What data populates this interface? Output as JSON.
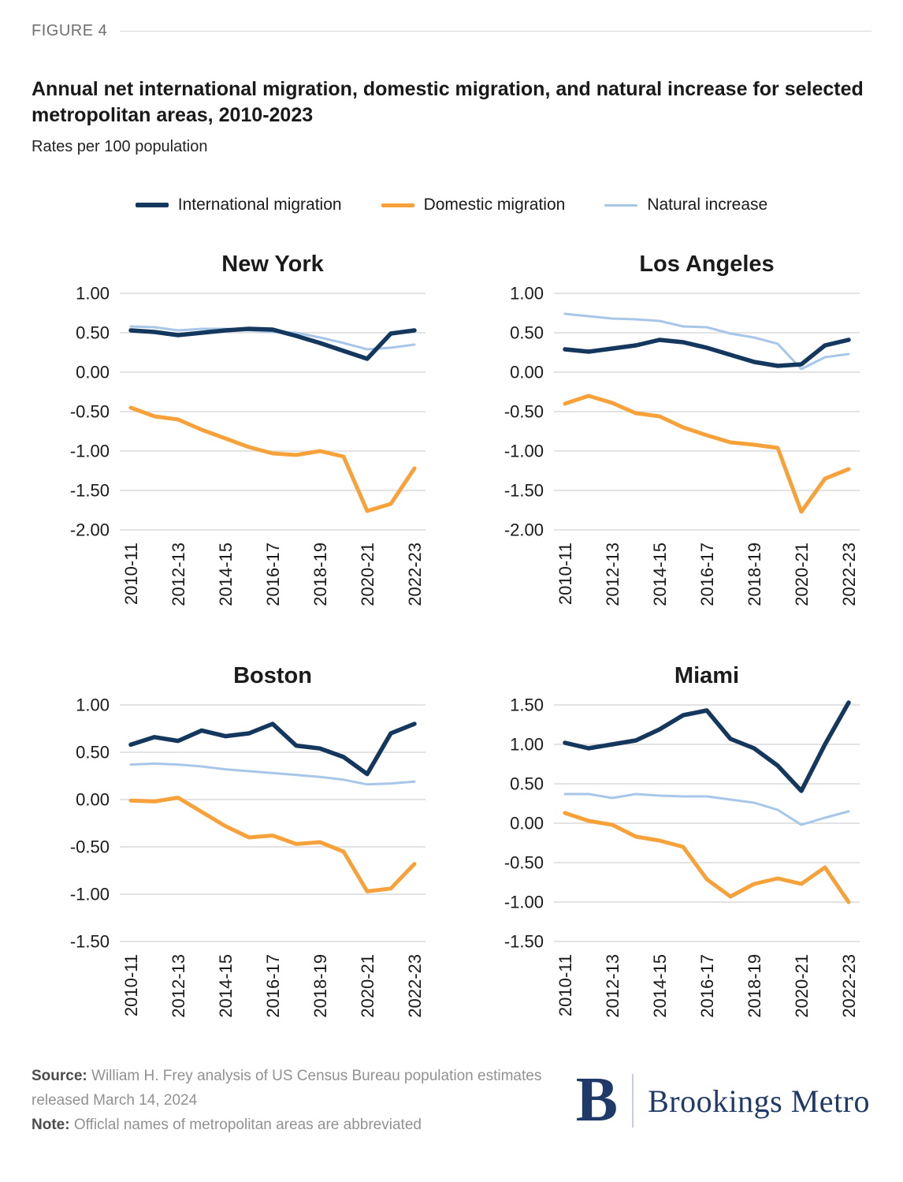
{
  "figure_label": "FIGURE 4",
  "title": "Annual net international migration, domestic migration, and natural increase for selected metropolitan areas, 2010-2023",
  "subtitle": "Rates per 100 population",
  "colors": {
    "international": "#14375E",
    "domestic": "#F7A13A",
    "natural": "#A7C6E8",
    "gridline": "#DADADA",
    "logo_navy": "#1F3A68"
  },
  "chart_data": {
    "type": "line",
    "grid": true,
    "legend_position": "top",
    "ytick_step": 0.5,
    "series": [
      {
        "name": "international",
        "label": "International migration",
        "color": "#14375E"
      },
      {
        "name": "domestic",
        "label": "Domestic migration",
        "color": "#F7A13A"
      },
      {
        "name": "natural",
        "label": "Natural increase",
        "color": "#A7C6E8"
      }
    ],
    "x_categories": [
      "2010-11",
      "2011-12",
      "2012-13",
      "2013-14",
      "2014-15",
      "2015-16",
      "2016-17",
      "2017-18",
      "2018-19",
      "2019-20",
      "2020-21",
      "2021-22",
      "2022-23"
    ],
    "x_tick_labels": [
      "2010-11",
      "2012-13",
      "2014-15",
      "2016-17",
      "2018-19",
      "2020-21",
      "2022-23"
    ],
    "panels": [
      {
        "title": "New York",
        "ylim": [
          -2.0,
          1.0
        ],
        "values": {
          "international": [
            0.53,
            0.51,
            0.47,
            0.5,
            0.53,
            0.55,
            0.54,
            0.46,
            0.37,
            0.27,
            0.17,
            0.49,
            0.53
          ],
          "domestic": [
            -0.45,
            -0.56,
            -0.6,
            -0.73,
            -0.84,
            -0.95,
            -1.03,
            -1.05,
            -1.0,
            -1.07,
            -1.76,
            -1.67,
            -1.22
          ],
          "natural": [
            0.58,
            0.57,
            0.53,
            0.55,
            0.55,
            0.53,
            0.51,
            0.5,
            0.44,
            0.37,
            0.29,
            0.31,
            0.35
          ]
        }
      },
      {
        "title": "Los Angeles",
        "ylim": [
          -2.0,
          1.0
        ],
        "values": {
          "international": [
            0.29,
            0.26,
            0.3,
            0.34,
            0.41,
            0.38,
            0.31,
            0.22,
            0.13,
            0.08,
            0.1,
            0.34,
            0.41
          ],
          "domestic": [
            -0.4,
            -0.3,
            -0.39,
            -0.52,
            -0.56,
            -0.7,
            -0.8,
            -0.89,
            -0.92,
            -0.96,
            -1.77,
            -1.35,
            -1.23
          ],
          "natural": [
            0.74,
            0.71,
            0.68,
            0.67,
            0.65,
            0.58,
            0.57,
            0.49,
            0.44,
            0.36,
            0.04,
            0.19,
            0.23
          ]
        }
      },
      {
        "title": "Boston",
        "ylim": [
          -1.5,
          1.0
        ],
        "values": {
          "international": [
            0.58,
            0.66,
            0.62,
            0.73,
            0.67,
            0.7,
            0.8,
            0.57,
            0.54,
            0.45,
            0.27,
            0.7,
            0.8
          ],
          "domestic": [
            -0.01,
            -0.02,
            0.02,
            -0.13,
            -0.28,
            -0.4,
            -0.38,
            -0.47,
            -0.45,
            -0.55,
            -0.97,
            -0.94,
            -0.68
          ],
          "natural": [
            0.37,
            0.38,
            0.37,
            0.35,
            0.32,
            0.3,
            0.28,
            0.26,
            0.24,
            0.21,
            0.16,
            0.17,
            0.19
          ]
        }
      },
      {
        "title": "Miami",
        "ylim": [
          -1.5,
          1.5
        ],
        "values": {
          "international": [
            1.02,
            0.95,
            1.0,
            1.05,
            1.19,
            1.37,
            1.43,
            1.07,
            0.95,
            0.73,
            0.41,
            1.0,
            1.53
          ],
          "domestic": [
            0.13,
            0.03,
            -0.02,
            -0.17,
            -0.22,
            -0.3,
            -0.71,
            -0.93,
            -0.77,
            -0.7,
            -0.77,
            -0.56,
            -1.0
          ],
          "natural": [
            0.37,
            0.37,
            0.32,
            0.37,
            0.35,
            0.34,
            0.34,
            0.3,
            0.26,
            0.17,
            -0.02,
            0.07,
            0.15
          ]
        }
      }
    ]
  },
  "footer": {
    "source_label": "Source:",
    "source_text": " William H. Frey analysis of US Census Bureau population estimates released March 14, 2024",
    "note_label": "Note:",
    "note_text": " Officlal names of metropolitan areas are abbreviated",
    "logo_letter": "B",
    "logo_text": "Brookings Metro"
  }
}
